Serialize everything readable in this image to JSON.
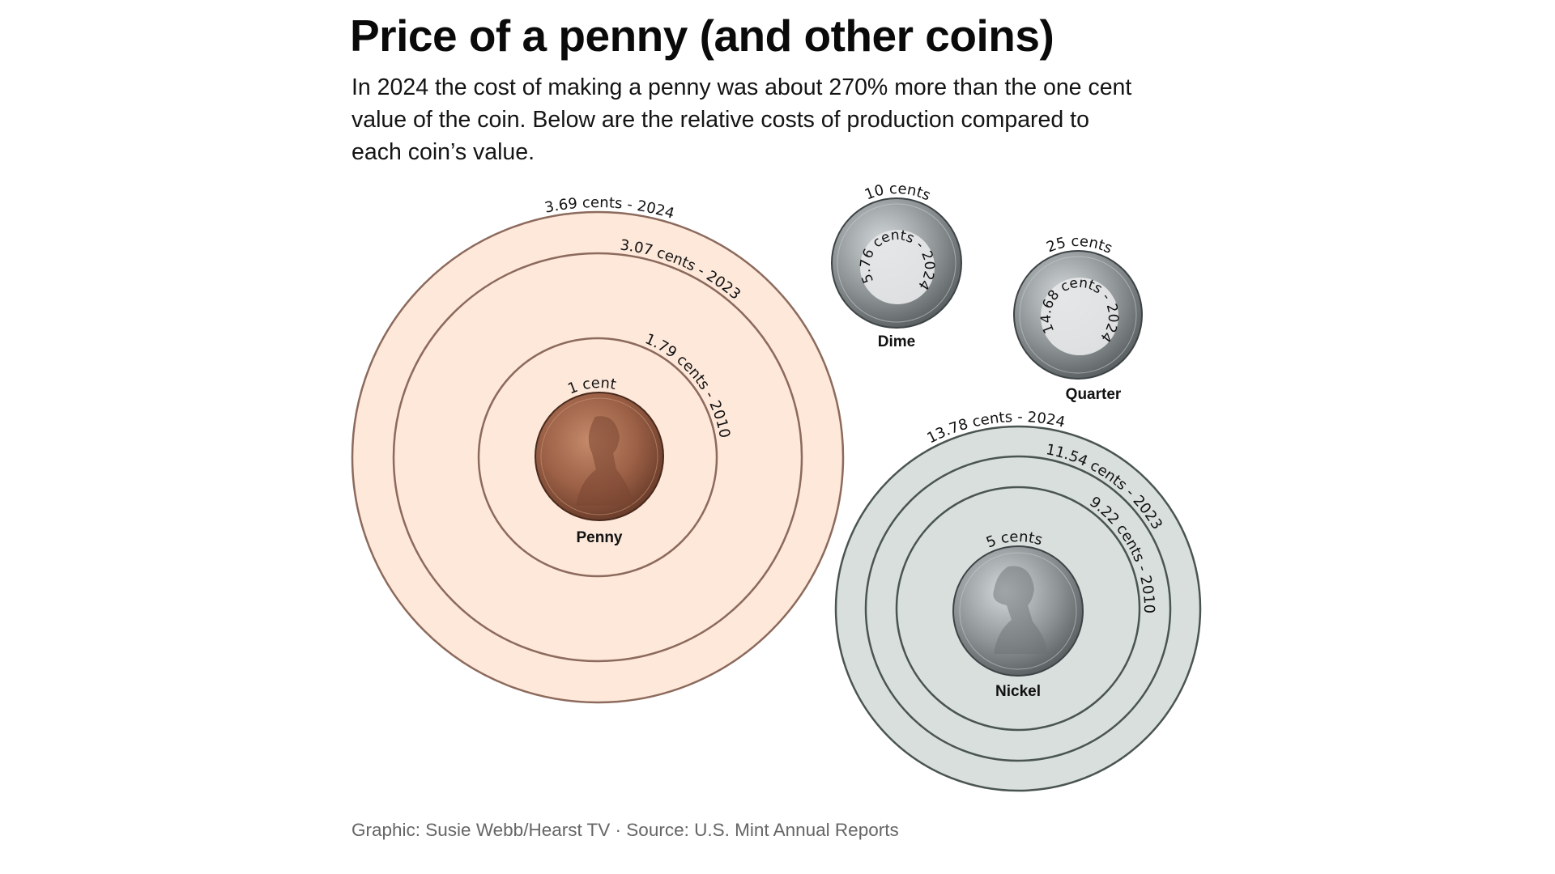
{
  "header": {
    "title": "Price of a penny (and other coins)",
    "subtitle_lines": [
      "In 2024 the cost of making a penny was about 270% more than the one cent",
      "value of the coin. Below are the relative costs of production compared to",
      "each coin’s value."
    ]
  },
  "footer": {
    "credit": "Graphic: Susie Webb/Hearst TV · Source: U.S. Mint Annual Reports"
  },
  "colors": {
    "penny_fill": "#FDE8DA",
    "penny_stroke": "#8C6A5C",
    "nickel_fill": "#D9DFDD",
    "nickel_stroke": "#4A5552",
    "penny_coin": "#9A5F45",
    "silver_coin": "#8E9496",
    "inner_disk": "#E6E7E8"
  },
  "coins": {
    "penny": {
      "name": "Penny",
      "face_value_label": "1 cent",
      "rings": [
        {
          "label": "3.69 cents - 2024"
        },
        {
          "label": "3.07 cents - 2023"
        },
        {
          "label": "1.79 cents - 2010"
        }
      ]
    },
    "nickel": {
      "name": "Nickel",
      "face_value_label": "5 cents",
      "rings": [
        {
          "label": "13.78 cents - 2024"
        },
        {
          "label": "11.54 cents - 2023"
        },
        {
          "label": "9.22 cents - 2010"
        }
      ]
    },
    "dime": {
      "name": "Dime",
      "face_value_label": "10 cents",
      "inner_label": "5.76 cents - 2024"
    },
    "quarter": {
      "name": "Quarter",
      "face_value_label": "25 cents",
      "inner_label": "14.68 cents - 2024"
    }
  },
  "chart_data": {
    "type": "proportional-area-circles",
    "title": "Price of a penny (and other coins)",
    "subtitle": "In 2024 the cost of making a penny was about 270% more than the one cent value of the coin. Below are the relative costs of production compared to each coin’s value.",
    "unit": "cents",
    "categories": [
      "Penny",
      "Nickel",
      "Dime",
      "Quarter"
    ],
    "face_values": [
      1,
      5,
      10,
      25
    ],
    "series": [
      {
        "name": "2010",
        "values": [
          1.79,
          9.22,
          null,
          null
        ]
      },
      {
        "name": "2023",
        "values": [
          3.07,
          11.54,
          null,
          null
        ]
      },
      {
        "name": "2024",
        "values": [
          3.69,
          13.78,
          5.76,
          14.68
        ]
      }
    ],
    "annotations": [
      "1 cent",
      "5 cents",
      "10 cents",
      "25 cents"
    ],
    "source": "U.S. Mint Annual Reports"
  }
}
